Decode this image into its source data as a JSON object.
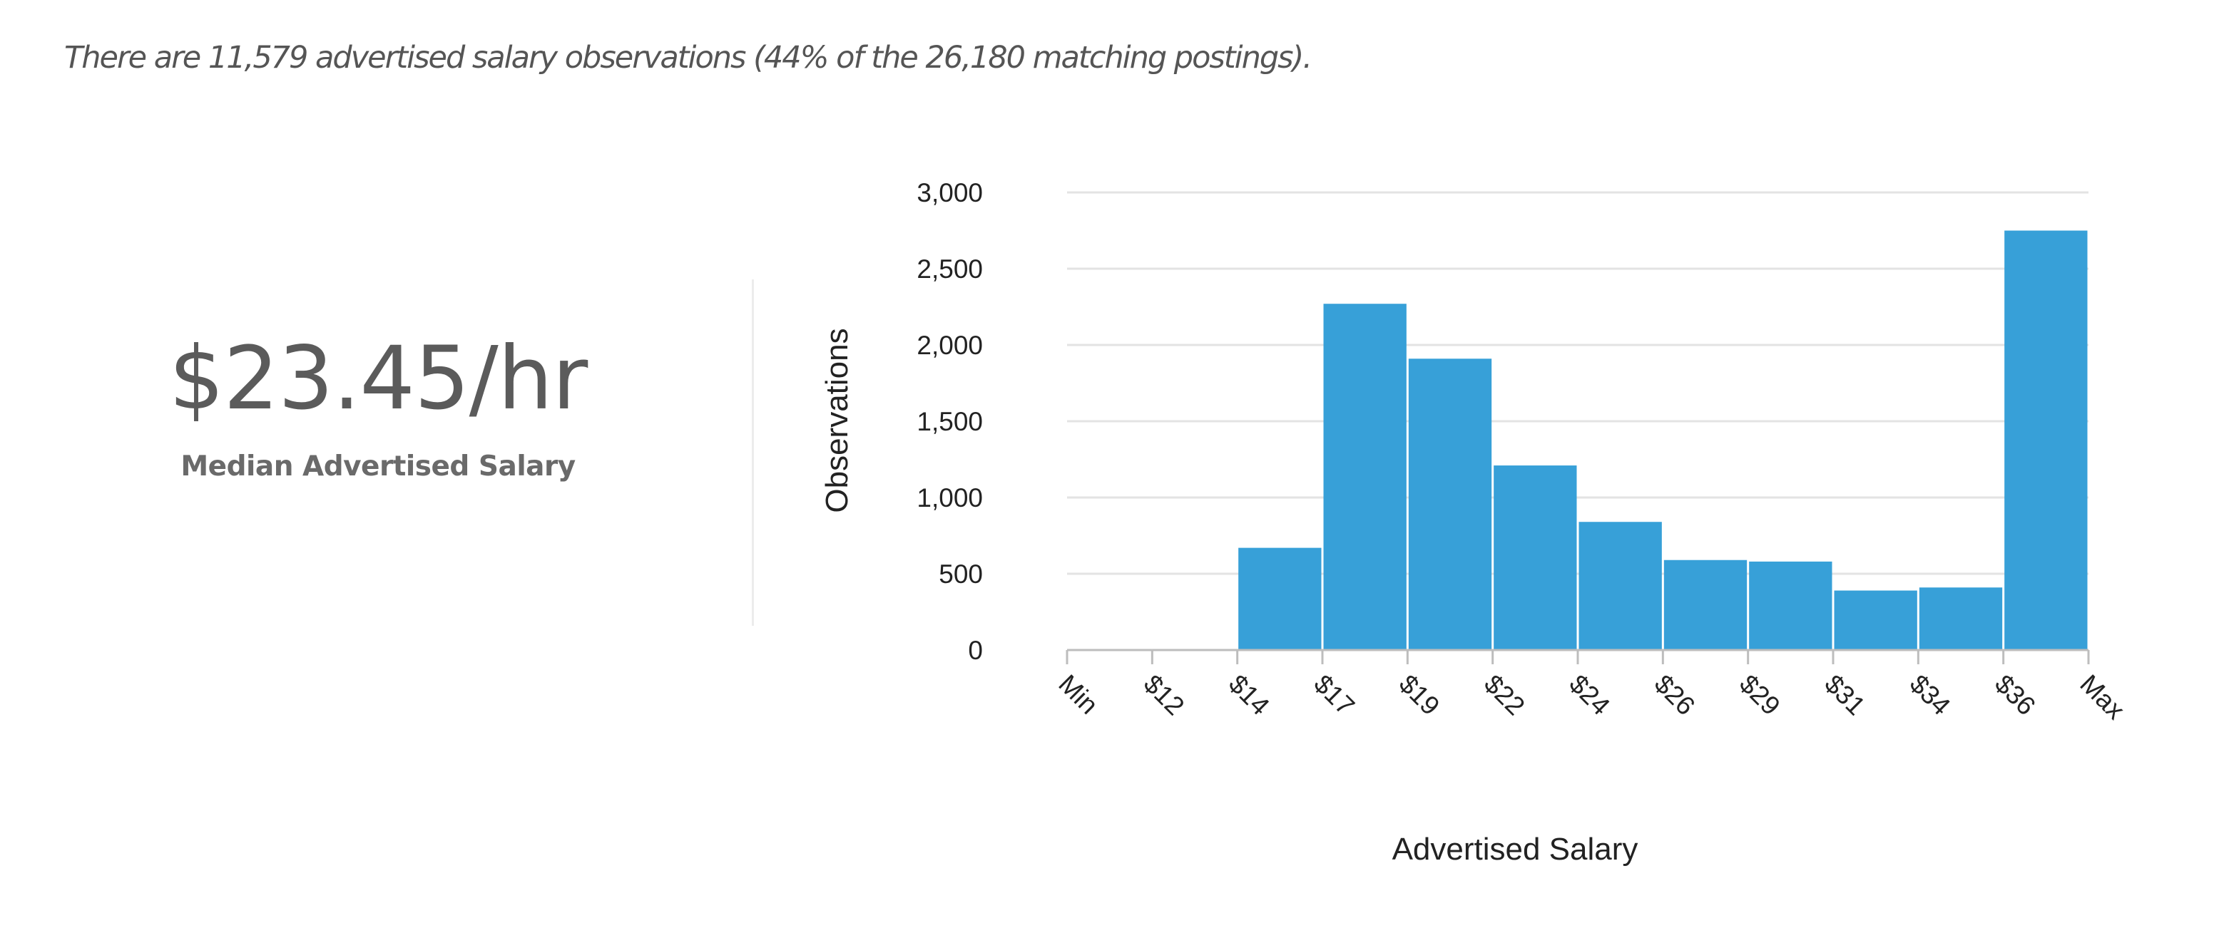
{
  "summary": {
    "text": "There are 11,579 advertised salary observations (44% of the 26,180 matching postings)."
  },
  "median": {
    "value": "$23.45/hr",
    "label": "Median Advertised Salary"
  },
  "colors": {
    "bar": "#37a0d8",
    "grid": "#e3e3e3",
    "axis": "#bdbdbd"
  },
  "chart_data": {
    "type": "bar",
    "xlabel": "Advertised Salary",
    "ylabel": "Observations",
    "ylim": [
      0,
      3000
    ],
    "yticks": [
      0,
      500,
      1000,
      1500,
      2000,
      2500,
      3000
    ],
    "ytick_labels": [
      "0",
      "500",
      "1,000",
      "1,500",
      "2,000",
      "2,500",
      "3,000"
    ],
    "bin_edges": [
      "Min",
      "$12",
      "$14",
      "$17",
      "$19",
      "$22",
      "$24",
      "$26",
      "$29",
      "$31",
      "$34",
      "$36",
      "Max"
    ],
    "values": [
      0,
      0,
      670,
      2270,
      1910,
      1210,
      840,
      590,
      580,
      390,
      410,
      2750
    ],
    "grid": true,
    "legend": "none"
  }
}
